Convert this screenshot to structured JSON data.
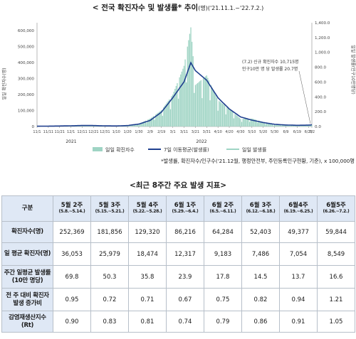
{
  "title": {
    "main": "< 전국 확진자수 및 발생률* 추이",
    "unit_and_period": "(명)('21.11.1.~'22.7.2.)"
  },
  "chart_data": {
    "type": "bar+line",
    "left_axis": {
      "label": "일일 확진자수(명)",
      "ticks": [
        "0",
        "100,000",
        "200,000",
        "300,000",
        "400,000",
        "500,000",
        "600,000"
      ],
      "range": [
        0,
        650000
      ]
    },
    "right_axis": {
      "label": "일일 발생률(인구10만명당)",
      "ticks": [
        "0.0",
        "200.0",
        "400.0",
        "600.0",
        "800.0",
        "1,000.0",
        "1,200.0",
        "1,400.0"
      ],
      "range": [
        0,
        1400
      ]
    },
    "x_tick_labels": [
      "11/1",
      "11/11",
      "11/21",
      "12/1",
      "12/11",
      "12/21",
      "12/31",
      "1/10",
      "1/20",
      "1/30",
      "2/9",
      "2/19",
      "3/1",
      "3/11",
      "3/21",
      "3/31",
      "4/10",
      "4/20",
      "4/30",
      "5/10",
      "5/20",
      "5/30",
      "6/9",
      "6/19",
      "6/29",
      "7/2"
    ],
    "x_year_labels": [
      "2021",
      "2022"
    ],
    "daily_cases": [
      {
        "date": "11/1",
        "value": 1700
      },
      {
        "date": "11/11",
        "value": 2500
      },
      {
        "date": "11/21",
        "value": 3100
      },
      {
        "date": "12/1",
        "value": 5100
      },
      {
        "date": "12/11",
        "value": 7000
      },
      {
        "date": "12/21",
        "value": 5200
      },
      {
        "date": "12/31",
        "value": 5000
      },
      {
        "date": "1/10",
        "value": 3000
      },
      {
        "date": "1/20",
        "value": 6600
      },
      {
        "date": "1/30",
        "value": 17500
      },
      {
        "date": "2/9",
        "value": 49500
      },
      {
        "date": "2/19",
        "value": 102000
      },
      {
        "date": "3/1",
        "value": 200000
      },
      {
        "date": "3/11",
        "value": 380000
      },
      {
        "date": "3/17",
        "value": 621000
      },
      {
        "date": "3/21",
        "value": 260000
      },
      {
        "date": "3/31",
        "value": 320000
      },
      {
        "date": "4/10",
        "value": 165000
      },
      {
        "date": "4/20",
        "value": 110000
      },
      {
        "date": "4/30",
        "value": 48000
      },
      {
        "date": "5/10",
        "value": 50000
      },
      {
        "date": "5/20",
        "value": 28000
      },
      {
        "date": "5/30",
        "value": 10000
      },
      {
        "date": "6/9",
        "value": 12000
      },
      {
        "date": "6/19",
        "value": 7000
      },
      {
        "date": "6/29",
        "value": 9500
      },
      {
        "date": "7/2",
        "value": 10715
      }
    ],
    "moving_avg_7day": [
      {
        "date": "11/1",
        "value": 1900
      },
      {
        "date": "11/11",
        "value": 2400
      },
      {
        "date": "11/21",
        "value": 3300
      },
      {
        "date": "12/1",
        "value": 4600
      },
      {
        "date": "12/11",
        "value": 6300
      },
      {
        "date": "12/21",
        "value": 6000
      },
      {
        "date": "12/31",
        "value": 4200
      },
      {
        "date": "1/10",
        "value": 3500
      },
      {
        "date": "1/20",
        "value": 6000
      },
      {
        "date": "1/30",
        "value": 15000
      },
      {
        "date": "2/9",
        "value": 38000
      },
      {
        "date": "2/19",
        "value": 90000
      },
      {
        "date": "3/1",
        "value": 180000
      },
      {
        "date": "3/11",
        "value": 280000
      },
      {
        "date": "3/17",
        "value": 400000
      },
      {
        "date": "3/21",
        "value": 350000
      },
      {
        "date": "3/31",
        "value": 290000
      },
      {
        "date": "4/10",
        "value": 180000
      },
      {
        "date": "4/20",
        "value": 110000
      },
      {
        "date": "4/30",
        "value": 60000
      },
      {
        "date": "5/10",
        "value": 40000
      },
      {
        "date": "5/20",
        "value": 25000
      },
      {
        "date": "5/30",
        "value": 14000
      },
      {
        "date": "6/9",
        "value": 9500
      },
      {
        "date": "6/19",
        "value": 7500
      },
      {
        "date": "6/29",
        "value": 8500
      },
      {
        "date": "7/2",
        "value": 10500
      }
    ],
    "annotation": {
      "line1": "(7.2) 신규 확진자수 10,715명",
      "line2": "인구10만 명 당 발생률 20.7명"
    },
    "legend": [
      {
        "label": "일일 확진자수",
        "kind": "bar",
        "color": "#9fd4c4"
      },
      {
        "label": "7일 이동평균(발생률)",
        "kind": "line",
        "color": "#1f3f8f"
      },
      {
        "label": "일일 발생률",
        "kind": "line",
        "color": "#9fd4c4"
      }
    ],
    "grid": false,
    "legend_placement": "bottom"
  },
  "footnote": "*발생률, 확진자수/인구수('21.12월, 행정안전부, 주민등록인구현황, 기준), x 100,000명",
  "table": {
    "title": "<최근 8주간 주요 발생 지표>",
    "header_label": "구분",
    "columns": [
      {
        "week": "5월 2주",
        "range": "(5.8.~5.14.)"
      },
      {
        "week": "5월 3주",
        "range": "(5.15.~5.21.)"
      },
      {
        "week": "5월 4주",
        "range": "(5.22.~5.28.)"
      },
      {
        "week": "6월 1주",
        "range": "(5.29.~6.4.)"
      },
      {
        "week": "6월 2주",
        "range": "(6.5.~6.11.)"
      },
      {
        "week": "6월 3주",
        "range": "(6.12.~6.18.)"
      },
      {
        "week": "6월4주",
        "range": "(6.19.~6.25.)"
      },
      {
        "week": "6월5주",
        "range": "(6.26.~7.2.)"
      }
    ],
    "rows": [
      {
        "label": "확진자수(명)",
        "values": [
          "252,369",
          "181,856",
          "129,320",
          "86,216",
          "64,284",
          "52,403",
          "49,377",
          "59,844"
        ]
      },
      {
        "label": "일 평균 확진자(명)",
        "values": [
          "36,053",
          "25,979",
          "18,474",
          "12,317",
          "9,183",
          "7,486",
          "7,054",
          "8,549"
        ]
      },
      {
        "label": "주간 일평균 발생률(10만 명당)",
        "values": [
          "69.8",
          "50.3",
          "35.8",
          "23.9",
          "17.8",
          "14.5",
          "13.7",
          "16.6"
        ]
      },
      {
        "label": "전 주 대비 확진자 발생 증가비",
        "values": [
          "0.95",
          "0.72",
          "0.71",
          "0.67",
          "0.75",
          "0.82",
          "0.94",
          "1.21"
        ]
      },
      {
        "label": "감염재생산지수(Rt)",
        "values": [
          "0.90",
          "0.83",
          "0.81",
          "0.74",
          "0.79",
          "0.86",
          "0.91",
          "1.05"
        ]
      }
    ]
  }
}
